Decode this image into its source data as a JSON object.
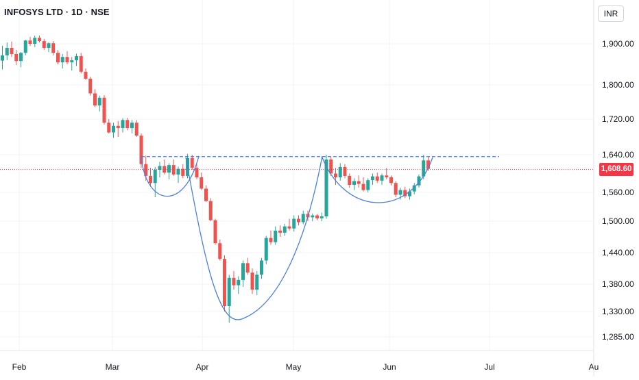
{
  "header": {
    "title": "INFOSYS LTD · 1D · NSE",
    "currency": "INR",
    "last_price_label": "1,608.60"
  },
  "colors": {
    "up": "#26a69a",
    "down": "#ef5350",
    "pattern": "#4c7ede",
    "last_price": "#f23645",
    "grid": "#f0f3fa",
    "text": "#131722"
  },
  "chart_data": {
    "type": "candlestick",
    "x_ticks": [
      "Feb",
      "Mar",
      "Apr",
      "May",
      "Jun",
      "Jul",
      "Au"
    ],
    "y_ticks": [
      "1,900.00",
      "1,800.00",
      "1,720.00",
      "1,640.00",
      "1,560.00",
      "1,500.00",
      "1,440.00",
      "1,380.00",
      "1,330.00",
      "1,285.00"
    ],
    "last_price": 1608.6,
    "resistance_level": 1636,
    "annotations": [
      "cup and handle",
      "cup and handle"
    ],
    "candles": [
      [
        1859,
        1895,
        1838,
        1872
      ],
      [
        1872,
        1905,
        1860,
        1890
      ],
      [
        1890,
        1908,
        1868,
        1875
      ],
      [
        1875,
        1885,
        1848,
        1858
      ],
      [
        1858,
        1880,
        1843,
        1878
      ],
      [
        1878,
        1915,
        1872,
        1912
      ],
      [
        1912,
        1925,
        1895,
        1900
      ],
      [
        1900,
        1930,
        1892,
        1922
      ],
      [
        1922,
        1930,
        1905,
        1910
      ],
      [
        1910,
        1918,
        1885,
        1890
      ],
      [
        1890,
        1906,
        1880,
        1902
      ],
      [
        1902,
        1910,
        1872,
        1878
      ],
      [
        1878,
        1885,
        1850,
        1855
      ],
      [
        1855,
        1875,
        1840,
        1868
      ],
      [
        1868,
        1882,
        1850,
        1855
      ],
      [
        1855,
        1868,
        1835,
        1860
      ],
      [
        1860,
        1876,
        1846,
        1870
      ],
      [
        1870,
        1878,
        1828,
        1832
      ],
      [
        1832,
        1840,
        1812,
        1815
      ],
      [
        1815,
        1820,
        1775,
        1780
      ],
      [
        1780,
        1790,
        1748,
        1752
      ],
      [
        1752,
        1775,
        1738,
        1770
      ],
      [
        1770,
        1776,
        1708,
        1712
      ],
      [
        1712,
        1720,
        1688,
        1690
      ],
      [
        1690,
        1712,
        1678,
        1705
      ],
      [
        1705,
        1716,
        1680,
        1700
      ],
      [
        1700,
        1722,
        1690,
        1718
      ],
      [
        1718,
        1723,
        1695,
        1700
      ],
      [
        1700,
        1718,
        1688,
        1712
      ],
      [
        1712,
        1718,
        1680,
        1683
      ],
      [
        1683,
        1688,
        1612,
        1620
      ],
      [
        1620,
        1638,
        1585,
        1595
      ],
      [
        1595,
        1612,
        1572,
        1580
      ],
      [
        1580,
        1614,
        1550,
        1608
      ],
      [
        1608,
        1625,
        1592,
        1616
      ],
      [
        1616,
        1630,
        1598,
        1602
      ],
      [
        1602,
        1622,
        1588,
        1618
      ],
      [
        1618,
        1630,
        1595,
        1598
      ],
      [
        1598,
        1615,
        1580,
        1610
      ],
      [
        1610,
        1620,
        1590,
        1595
      ],
      [
        1595,
        1642,
        1590,
        1633
      ],
      [
        1633,
        1640,
        1608,
        1612
      ],
      [
        1612,
        1620,
        1588,
        1592
      ],
      [
        1592,
        1602,
        1565,
        1568
      ],
      [
        1568,
        1575,
        1540,
        1542
      ],
      [
        1542,
        1548,
        1500,
        1502
      ],
      [
        1502,
        1505,
        1455,
        1458
      ],
      [
        1458,
        1465,
        1425,
        1428
      ],
      [
        1428,
        1435,
        1330,
        1340
      ],
      [
        1340,
        1398,
        1310,
        1392
      ],
      [
        1392,
        1405,
        1370,
        1378
      ],
      [
        1378,
        1395,
        1362,
        1388
      ],
      [
        1388,
        1425,
        1375,
        1420
      ],
      [
        1420,
        1430,
        1398,
        1402
      ],
      [
        1402,
        1410,
        1362,
        1370
      ],
      [
        1370,
        1405,
        1360,
        1398
      ],
      [
        1398,
        1430,
        1390,
        1425
      ],
      [
        1425,
        1472,
        1418,
        1468
      ],
      [
        1468,
        1482,
        1455,
        1460
      ],
      [
        1460,
        1490,
        1455,
        1482
      ],
      [
        1482,
        1492,
        1470,
        1478
      ],
      [
        1478,
        1495,
        1472,
        1490
      ],
      [
        1490,
        1505,
        1482,
        1486
      ],
      [
        1486,
        1512,
        1480,
        1505
      ],
      [
        1505,
        1512,
        1492,
        1498
      ],
      [
        1498,
        1522,
        1494,
        1515
      ],
      [
        1515,
        1522,
        1500,
        1508
      ],
      [
        1508,
        1516,
        1500,
        1512
      ],
      [
        1512,
        1515,
        1502,
        1506
      ],
      [
        1506,
        1518,
        1500,
        1510
      ],
      [
        1510,
        1640,
        1505,
        1630
      ],
      [
        1630,
        1636,
        1595,
        1600
      ],
      [
        1600,
        1612,
        1576,
        1592
      ],
      [
        1592,
        1622,
        1585,
        1614
      ],
      [
        1614,
        1620,
        1590,
        1595
      ],
      [
        1595,
        1600,
        1570,
        1576
      ],
      [
        1576,
        1590,
        1565,
        1584
      ],
      [
        1584,
        1596,
        1570,
        1578
      ],
      [
        1578,
        1592,
        1562,
        1565
      ],
      [
        1565,
        1590,
        1560,
        1586
      ],
      [
        1586,
        1600,
        1576,
        1594
      ],
      [
        1594,
        1602,
        1580,
        1585
      ],
      [
        1585,
        1600,
        1576,
        1596
      ],
      [
        1596,
        1612,
        1588,
        1592
      ],
      [
        1592,
        1596,
        1575,
        1580
      ],
      [
        1580,
        1584,
        1550,
        1555
      ],
      [
        1555,
        1570,
        1545,
        1565
      ],
      [
        1565,
        1572,
        1548,
        1552
      ],
      [
        1552,
        1568,
        1545,
        1562
      ],
      [
        1562,
        1580,
        1556,
        1575
      ],
      [
        1575,
        1598,
        1570,
        1594
      ],
      [
        1594,
        1640,
        1588,
        1628
      ],
      [
        1628,
        1636,
        1606,
        1610
      ]
    ]
  }
}
